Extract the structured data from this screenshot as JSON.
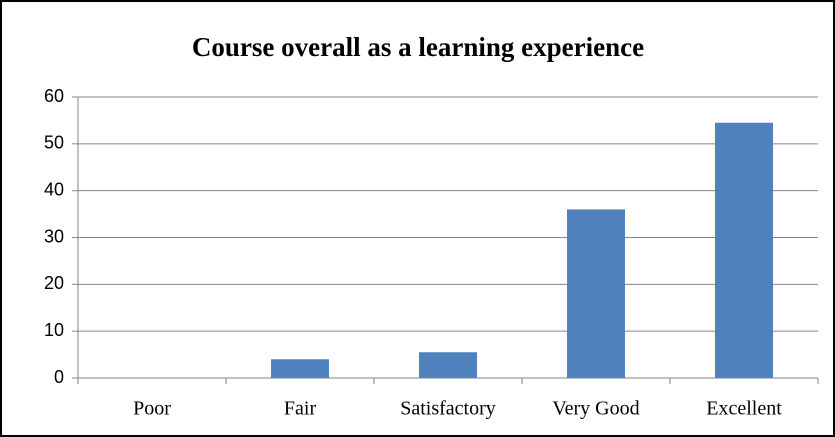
{
  "chart_data": {
    "type": "bar",
    "title": "Course overall as a learning experience",
    "categories": [
      "Poor",
      "Fair",
      "Satisfactory",
      "Very Good",
      "Excellent"
    ],
    "values": [
      0,
      4,
      5.5,
      36,
      54.5
    ],
    "color": "#4f81bd",
    "ylim": [
      0,
      60
    ],
    "yticks": [
      0,
      10,
      20,
      30,
      40,
      50,
      60
    ],
    "grid": true
  }
}
